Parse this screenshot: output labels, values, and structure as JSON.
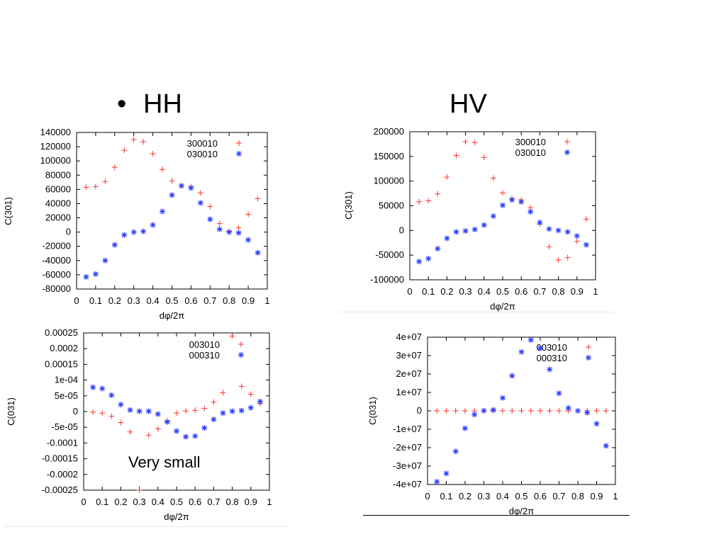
{
  "headings": {
    "bullet": "•",
    "left": "HH",
    "right": "HV"
  },
  "note": "Very small",
  "colors": {
    "series_a": "#ff3333",
    "series_b": "#2a3cff"
  },
  "chart_data": [
    {
      "type": "scatter",
      "xlabel": "dφ/2π",
      "ylabel": "C(301)",
      "xlim": [
        0,
        1
      ],
      "ylim": [
        -80000,
        140000
      ],
      "xticks": [
        0,
        0.1,
        0.2,
        0.3,
        0.4,
        0.5,
        0.6,
        0.7,
        0.8,
        0.9,
        1
      ],
      "xtick_labels": [
        "0",
        "0.1",
        "0.2",
        "0.3",
        "0.4",
        "0.5",
        "0.6",
        "0.7",
        "0.8",
        "0.9",
        "1"
      ],
      "yticks": [
        -80000,
        -60000,
        -40000,
        -20000,
        0,
        20000,
        40000,
        60000,
        80000,
        100000,
        120000,
        140000
      ],
      "ytick_labels": [
        "-80000",
        "-60000",
        "-40000",
        "-20000",
        "0",
        "20000",
        "40000",
        "60000",
        "80000",
        "100000",
        "120000",
        "140000"
      ],
      "legend_position": "top-right",
      "series": [
        {
          "name": "300010",
          "marker": "plus",
          "x": [
            0.05,
            0.1,
            0.15,
            0.2,
            0.25,
            0.3,
            0.35,
            0.4,
            0.45,
            0.5,
            0.55,
            0.6,
            0.65,
            0.7,
            0.75,
            0.8,
            0.85,
            0.9,
            0.95
          ],
          "y": [
            63000,
            64000,
            71000,
            91000,
            115000,
            130000,
            127000,
            110000,
            88000,
            72000,
            65000,
            64000,
            55000,
            36000,
            12000,
            1000,
            6000,
            25000,
            47000
          ]
        },
        {
          "name": "030010",
          "marker": "star",
          "x": [
            0.05,
            0.1,
            0.15,
            0.2,
            0.25,
            0.3,
            0.35,
            0.4,
            0.45,
            0.5,
            0.55,
            0.6,
            0.65,
            0.7,
            0.75,
            0.8,
            0.85,
            0.9,
            0.95
          ],
          "y": [
            -63000,
            -59000,
            -40000,
            -18000,
            -4000,
            0,
            1000,
            10000,
            29000,
            52000,
            65000,
            62000,
            41000,
            18000,
            4000,
            0,
            -1000,
            -11000,
            -29000
          ]
        }
      ]
    },
    {
      "type": "scatter",
      "xlabel": "dφ/2π",
      "ylabel": "C(301)",
      "xlim": [
        0,
        1
      ],
      "ylim": [
        -100000,
        200000
      ],
      "xticks": [
        0,
        0.1,
        0.2,
        0.3,
        0.4,
        0.5,
        0.6,
        0.7,
        0.8,
        0.9,
        1
      ],
      "xtick_labels": [
        "0",
        "0.1",
        "0.2",
        "0.3",
        "0.4",
        "0.5",
        "0.6",
        "0.7",
        "0.8",
        "0.9",
        "1"
      ],
      "yticks": [
        -100000,
        -50000,
        0,
        50000,
        100000,
        150000,
        200000
      ],
      "ytick_labels": [
        "-100000",
        "-50000",
        "0",
        "50000",
        "100000",
        "150000",
        "200000"
      ],
      "legend_position": "top-right",
      "series": [
        {
          "name": "300010",
          "marker": "plus",
          "x": [
            0.05,
            0.1,
            0.15,
            0.2,
            0.25,
            0.3,
            0.35,
            0.4,
            0.45,
            0.5,
            0.55,
            0.6,
            0.65,
            0.7,
            0.75,
            0.8,
            0.85,
            0.9,
            0.95
          ],
          "y": [
            58000,
            60000,
            74000,
            108000,
            152000,
            180000,
            178000,
            148000,
            106000,
            76000,
            65000,
            62000,
            46000,
            13000,
            -33000,
            -60000,
            -55000,
            -22000,
            23000
          ]
        },
        {
          "name": "030010",
          "marker": "star",
          "x": [
            0.05,
            0.1,
            0.15,
            0.2,
            0.25,
            0.3,
            0.35,
            0.4,
            0.45,
            0.5,
            0.55,
            0.6,
            0.65,
            0.7,
            0.75,
            0.8,
            0.85,
            0.9,
            0.95
          ],
          "y": [
            -63000,
            -57000,
            -37000,
            -16000,
            -3000,
            -1000,
            2000,
            11000,
            29000,
            51000,
            62000,
            58000,
            38000,
            16000,
            3000,
            0,
            -3000,
            -11000,
            -29000
          ]
        }
      ]
    },
    {
      "type": "scatter",
      "xlabel": "dφ/2π",
      "ylabel": "C(031)",
      "xlim": [
        0,
        1
      ],
      "ylim": [
        -0.00025,
        0.00025
      ],
      "xticks": [
        0,
        0.1,
        0.2,
        0.3,
        0.4,
        0.5,
        0.6,
        0.7,
        0.8,
        0.9,
        1
      ],
      "xtick_labels": [
        "0",
        "0.1",
        "0.2",
        "0.3",
        "0.4",
        "0.5",
        "0.6",
        "0.7",
        "0.8",
        "0.9",
        "1"
      ],
      "yticks": [
        -0.00025,
        -0.0002,
        -0.00015,
        -0.0001,
        -5e-05,
        0,
        5e-05,
        0.0001,
        0.00015,
        0.0002,
        0.00025
      ],
      "ytick_labels": [
        "-0.00025",
        "-0.0002",
        "-0.00015",
        "-0.0001",
        "-5e-05",
        "0",
        "5e-05",
        "1e-04",
        "0.00015",
        "0.0002",
        "0.00025"
      ],
      "legend_position": "top-right",
      "series": [
        {
          "name": "003010",
          "marker": "plus",
          "x": [
            0.05,
            0.1,
            0.15,
            0.2,
            0.25,
            0.3,
            0.35,
            0.4,
            0.45,
            0.5,
            0.55,
            0.6,
            0.65,
            0.7,
            0.75,
            0.8,
            0.85,
            0.9,
            0.95
          ],
          "y": [
            -2e-06,
            -5e-06,
            -1.5e-05,
            -3.5e-05,
            -6.5e-05,
            -0.00025,
            -7.5e-05,
            -5.5e-05,
            -3e-05,
            -5e-06,
            2e-06,
            4e-06,
            1e-05,
            3e-05,
            6e-05,
            0.00024,
            8e-05,
            5.5e-05,
            2.5e-05
          ]
        },
        {
          "name": "000310",
          "marker": "star",
          "x": [
            0.05,
            0.1,
            0.15,
            0.2,
            0.25,
            0.3,
            0.35,
            0.4,
            0.45,
            0.5,
            0.55,
            0.6,
            0.65,
            0.7,
            0.75,
            0.8,
            0.85,
            0.9,
            0.95
          ],
          "y": [
            7.7e-05,
            7.3e-05,
            5.2e-05,
            2.2e-05,
            5e-06,
            1e-06,
            1e-06,
            -8e-06,
            -3.3e-05,
            -6.2e-05,
            -8e-05,
            -7.8e-05,
            -5.2e-05,
            -2.5e-05,
            -5e-06,
            1e-06,
            3e-06,
            1.2e-05,
            3.2e-05
          ]
        }
      ]
    },
    {
      "type": "scatter",
      "xlabel": "dφ/2π",
      "ylabel": "C(031)",
      "xlim": [
        0,
        1
      ],
      "ylim": [
        -40000000,
        40000000
      ],
      "xticks": [
        0,
        0.1,
        0.2,
        0.3,
        0.4,
        0.5,
        0.6,
        0.7,
        0.8,
        0.9,
        1
      ],
      "xtick_labels": [
        "0",
        "0.1",
        "0.2",
        "0.3",
        "0.4",
        "0.5",
        "0.6",
        "0.7",
        "0.8",
        "0.9",
        "1"
      ],
      "yticks": [
        -40000000,
        -30000000,
        -20000000,
        -10000000,
        0,
        10000000,
        20000000,
        30000000,
        40000000
      ],
      "ytick_labels": [
        "-4e+07",
        "-3e+07",
        "-2e+07",
        "-1e+07",
        "0",
        "1e+07",
        "2e+07",
        "3e+07",
        "4e+07"
      ],
      "legend_position": "top-right",
      "series": [
        {
          "name": "003010",
          "marker": "plus",
          "x": [
            0.05,
            0.1,
            0.15,
            0.2,
            0.25,
            0.3,
            0.35,
            0.4,
            0.45,
            0.5,
            0.55,
            0.6,
            0.65,
            0.7,
            0.75,
            0.8,
            0.85,
            0.9,
            0.95
          ],
          "y": [
            0,
            0,
            0,
            0,
            0,
            0,
            0,
            0,
            0,
            0,
            0,
            0,
            0,
            0,
            0,
            0,
            0,
            0,
            0
          ]
        },
        {
          "name": "000310",
          "marker": "star",
          "x": [
            0.05,
            0.1,
            0.15,
            0.2,
            0.25,
            0.3,
            0.35,
            0.4,
            0.45,
            0.5,
            0.55,
            0.6,
            0.65,
            0.7,
            0.75,
            0.8,
            0.85,
            0.9,
            0.95
          ],
          "y": [
            -38500000,
            -34000000,
            -22000000,
            -9500000,
            -2000000,
            100000,
            500000,
            7000000,
            19000000,
            32000000,
            38500000,
            34000000,
            22500000,
            9500000,
            1500000,
            0,
            -1000000,
            -7000000,
            -19000000
          ]
        }
      ]
    }
  ]
}
